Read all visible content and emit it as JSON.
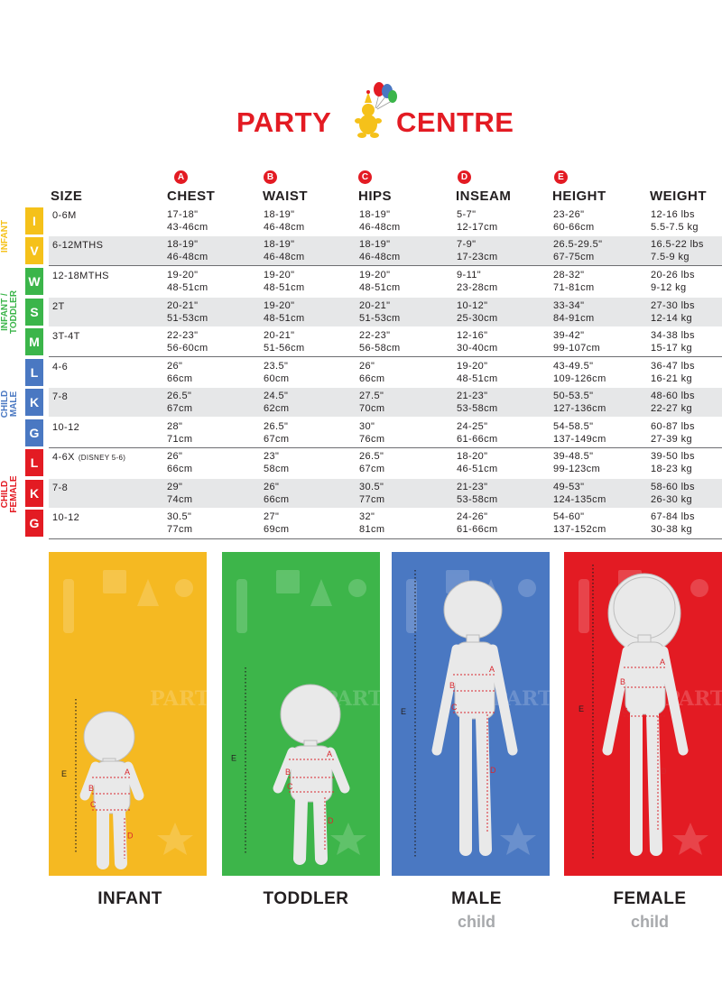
{
  "brand": {
    "name_left": "PARTY",
    "name_right": "CENTRE"
  },
  "headers": {
    "size": "SIZE",
    "chest": "CHEST",
    "waist": "WAIST",
    "hips": "HIPS",
    "inseam": "INSEAM",
    "height": "HEIGHT",
    "weight": "WEIGHT",
    "chest_mark": "A",
    "waist_mark": "B",
    "hips_mark": "C",
    "inseam_mark": "D",
    "height_mark": "E"
  },
  "groups": [
    {
      "label_1": "INFANT",
      "label_2": "",
      "color": "#f5c11a",
      "letters": [
        "I",
        "V"
      ]
    },
    {
      "label_1": "INFANT /",
      "label_2": "TODDLER",
      "color": "#3bb54a",
      "letters": [
        "W",
        "S",
        "M"
      ]
    },
    {
      "label_1": "CHILD",
      "label_2": "MALE",
      "color": "#4a78c2",
      "letters": [
        "L",
        "K",
        "G"
      ]
    },
    {
      "label_1": "CHILD",
      "label_2": "FEMALE",
      "color": "#e31b23",
      "letters": [
        "L",
        "K",
        "G"
      ]
    }
  ],
  "rows": [
    {
      "size": "0-6M",
      "size_note": "",
      "chest": [
        "17-18\"",
        "43-46cm"
      ],
      "waist": [
        "18-19\"",
        "46-48cm"
      ],
      "hips": [
        "18-19\"",
        "46-48cm"
      ],
      "inseam": [
        "5-7\"",
        "12-17cm"
      ],
      "height": [
        "23-26\"",
        "60-66cm"
      ],
      "weight": [
        "12-16 lbs",
        "5.5-7.5 kg"
      ]
    },
    {
      "size": "6-12MTHS",
      "size_note": "",
      "chest": [
        "18-19\"",
        "46-48cm"
      ],
      "waist": [
        "18-19\"",
        "46-48cm"
      ],
      "hips": [
        "18-19\"",
        "46-48cm"
      ],
      "inseam": [
        "7-9\"",
        "17-23cm"
      ],
      "height": [
        "26.5-29.5\"",
        "67-75cm"
      ],
      "weight": [
        "16.5-22 lbs",
        "7.5-9 kg"
      ]
    },
    {
      "size": "12-18MTHS",
      "size_note": "",
      "chest": [
        "19-20\"",
        "48-51cm"
      ],
      "waist": [
        "19-20\"",
        "48-51cm"
      ],
      "hips": [
        "19-20\"",
        "48-51cm"
      ],
      "inseam": [
        "9-11\"",
        "23-28cm"
      ],
      "height": [
        "28-32\"",
        "71-81cm"
      ],
      "weight": [
        "20-26 lbs",
        "9-12 kg"
      ]
    },
    {
      "size": "2T",
      "size_note": "",
      "chest": [
        "20-21\"",
        "51-53cm"
      ],
      "waist": [
        "19-20\"",
        "48-51cm"
      ],
      "hips": [
        "20-21\"",
        "51-53cm"
      ],
      "inseam": [
        "10-12\"",
        "25-30cm"
      ],
      "height": [
        "33-34\"",
        "84-91cm"
      ],
      "weight": [
        "27-30 lbs",
        "12-14 kg"
      ]
    },
    {
      "size": "3T-4T",
      "size_note": "",
      "chest": [
        "22-23\"",
        "56-60cm"
      ],
      "waist": [
        "20-21\"",
        "51-56cm"
      ],
      "hips": [
        "22-23\"",
        "56-58cm"
      ],
      "inseam": [
        "12-16\"",
        "30-40cm"
      ],
      "height": [
        "39-42\"",
        "99-107cm"
      ],
      "weight": [
        "34-38 lbs",
        "15-17 kg"
      ]
    },
    {
      "size": "4-6",
      "size_note": "",
      "chest": [
        "26\"",
        "66cm"
      ],
      "waist": [
        "23.5\"",
        "60cm"
      ],
      "hips": [
        "26\"",
        "66cm"
      ],
      "inseam": [
        "19-20\"",
        "48-51cm"
      ],
      "height": [
        "43-49.5\"",
        "109-126cm"
      ],
      "weight": [
        "36-47 lbs",
        "16-21 kg"
      ]
    },
    {
      "size": "7-8",
      "size_note": "",
      "chest": [
        "26.5\"",
        "67cm"
      ],
      "waist": [
        "24.5\"",
        "62cm"
      ],
      "hips": [
        "27.5\"",
        "70cm"
      ],
      "inseam": [
        "21-23\"",
        "53-58cm"
      ],
      "height": [
        "50-53.5\"",
        "127-136cm"
      ],
      "weight": [
        "48-60 lbs",
        "22-27 kg"
      ]
    },
    {
      "size": "10-12",
      "size_note": "",
      "chest": [
        "28\"",
        "71cm"
      ],
      "waist": [
        "26.5\"",
        "67cm"
      ],
      "hips": [
        "30\"",
        "76cm"
      ],
      "inseam": [
        "24-25\"",
        "61-66cm"
      ],
      "height": [
        "54-58.5\"",
        "137-149cm"
      ],
      "weight": [
        "60-87 lbs",
        "27-39 kg"
      ]
    },
    {
      "size": "4-6X",
      "size_note": "(DISNEY 5-6)",
      "chest": [
        "26\"",
        "66cm"
      ],
      "waist": [
        "23\"",
        "58cm"
      ],
      "hips": [
        "26.5\"",
        "67cm"
      ],
      "inseam": [
        "18-20\"",
        "46-51cm"
      ],
      "height": [
        "39-48.5\"",
        "99-123cm"
      ],
      "weight": [
        "39-50 lbs",
        "18-23 kg"
      ]
    },
    {
      "size": "7-8",
      "size_note": "",
      "chest": [
        "29\"",
        "74cm"
      ],
      "waist": [
        "26\"",
        "66cm"
      ],
      "hips": [
        "30.5\"",
        "77cm"
      ],
      "inseam": [
        "21-23\"",
        "53-58cm"
      ],
      "height": [
        "49-53\"",
        "124-135cm"
      ],
      "weight": [
        "58-60 lbs",
        "26-30 kg"
      ]
    },
    {
      "size": "10-12",
      "size_note": "",
      "chest": [
        "30.5\"",
        "77cm"
      ],
      "waist": [
        "27\"",
        "69cm"
      ],
      "hips": [
        "32\"",
        "81cm"
      ],
      "inseam": [
        "24-26\"",
        "61-66cm"
      ],
      "height": [
        "54-60\"",
        "137-152cm"
      ],
      "weight": [
        "67-84 lbs",
        "30-38 kg"
      ]
    }
  ],
  "panels": [
    {
      "caption": "INFANT",
      "subcaption": "",
      "color": "#f5b922",
      "bg_text": "PARTY"
    },
    {
      "caption": "TODDLER",
      "subcaption": "",
      "color": "#3db54a",
      "bg_text": "PARTY"
    },
    {
      "caption": "MALE",
      "subcaption": "child",
      "color": "#4a78c2",
      "bg_text": "PARTY"
    },
    {
      "caption": "FEMALE",
      "subcaption": "child",
      "color": "#e31b23",
      "bg_text": "PARTY"
    }
  ]
}
